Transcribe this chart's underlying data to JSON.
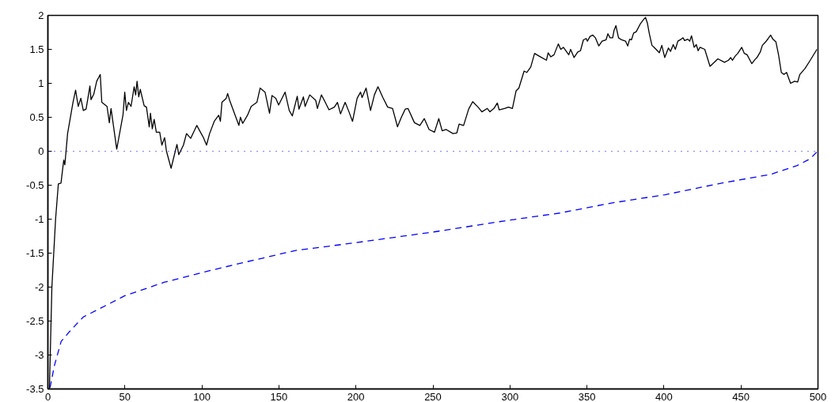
{
  "chart_data": {
    "type": "line",
    "xlim": [
      0,
      500
    ],
    "ylim": [
      -3.5,
      2
    ],
    "xticks": [
      0,
      50,
      100,
      150,
      200,
      250,
      300,
      350,
      400,
      450,
      500
    ],
    "yticks": [
      -3.5,
      -3,
      -2.5,
      -2,
      -1.5,
      -1,
      -0.5,
      0,
      0.5,
      1,
      1.5,
      2
    ],
    "grid": false,
    "ref_lines": [
      {
        "axis": "y",
        "value": 0,
        "color": "#0000ff",
        "line_style": "dotted"
      }
    ],
    "series": [
      {
        "color": "#000000",
        "line_style": "solid",
        "x": [
          1,
          2.6,
          5,
          6.8,
          8.5,
          10.3,
          11,
          12.8,
          16.3,
          18,
          19.7,
          21.4,
          23,
          24.8,
          27.3,
          28,
          29.8,
          31.7,
          34,
          35,
          38.4,
          39.9,
          41,
          44.7,
          48.8,
          49.9,
          51,
          52.3,
          54,
          56,
          57,
          57.9,
          59,
          60,
          62.5,
          64,
          65.8,
          66.6,
          67.8,
          69,
          70.4,
          72.6,
          74,
          75.8,
          77,
          80,
          83.8,
          85,
          88,
          90,
          92.7,
          96.7,
          101,
          103,
          105,
          108,
          110.9,
          112,
          113,
          115.8,
          116.7,
          118,
          124,
          125,
          126.5,
          129.6,
          132,
          135.7,
          137.8,
          141,
          143.9,
          145.5,
          148,
          149.8,
          154,
          156.7,
          158.7,
          161.9,
          163,
          165.9,
          167,
          170,
          173.9,
          175,
          177.6,
          179.9,
          182.5,
          186,
          188,
          190,
          193,
          195.5,
          197.8,
          200.8,
          203,
          204,
          206.6,
          209.5,
          212,
          214.3,
          217.5,
          220.6,
          223.8,
          227,
          229.5,
          232,
          233.8,
          238,
          241.5,
          244.4,
          247.5,
          251,
          253.8,
          256,
          258.6,
          263,
          265.5,
          267,
          269.9,
          273.2,
          275.8,
          279.3,
          281.8,
          285.3,
          287,
          289.6,
          291.8,
          293,
          296.5,
          299,
          301.6,
          304,
          305.8,
          309.2,
          311,
          313.5,
          316,
          319,
          323.7,
          324.8,
          326.5,
          328.6,
          331.4,
          333,
          334.7,
          338.2,
          339.4,
          341.6,
          344,
          345.8,
          347.7,
          349.5,
          350.3,
          352,
          353.8,
          355.5,
          357.7,
          359.8,
          362.4,
          363.6,
          365,
          366.7,
          367.6,
          368.8,
          370.5,
          372.5,
          375.1,
          376.5,
          377.7,
          378.9,
          380.3,
          382,
          384.5,
          386.8,
          388,
          389.2,
          390.5,
          392.2,
          394,
          397,
          398.6,
          400.5,
          402.9,
          404.3,
          406,
          407.4,
          409,
          411.2,
          412.4,
          413.4,
          415.5,
          416.7,
          417.9,
          419.6,
          421,
          422.2,
          423.4,
          426.5,
          429.9,
          435,
          439.3,
          441.9,
          443.3,
          444.5,
          446.2,
          447.9,
          450.5,
          452.2,
          454,
          457,
          459.1,
          460.4,
          462.5,
          463.9,
          466,
          467.7,
          469.3,
          470.7,
          472.7,
          474.4,
          476.2,
          477.9,
          479.6,
          482.2,
          484.8,
          486.8,
          488.2,
          491.6,
          495,
          499.3
        ],
        "values": [
          -3.5,
          -2.0,
          -1.0,
          -0.48,
          -0.47,
          -0.13,
          -0.2,
          0.26,
          0.72,
          0.9,
          0.66,
          0.78,
          0.6,
          0.62,
          0.96,
          0.76,
          0.84,
          1.03,
          1.13,
          0.72,
          0.66,
          0.42,
          0.63,
          0.03,
          0.54,
          0.87,
          0.6,
          0.72,
          0.66,
          0.95,
          0.83,
          1.03,
          0.8,
          0.91,
          0.67,
          0.65,
          0.36,
          0.56,
          0.33,
          0.47,
          0.28,
          0.28,
          0.09,
          0.2,
          0.0,
          -0.25,
          0.1,
          -0.05,
          0.09,
          0.26,
          0.19,
          0.38,
          0.2,
          0.09,
          0.26,
          0.44,
          0.53,
          0.44,
          0.72,
          0.78,
          0.85,
          0.75,
          0.38,
          0.5,
          0.41,
          0.53,
          0.66,
          0.72,
          0.93,
          0.87,
          0.56,
          0.82,
          0.78,
          0.68,
          0.87,
          0.6,
          0.52,
          0.81,
          0.62,
          0.8,
          0.66,
          0.83,
          0.75,
          0.63,
          0.83,
          0.73,
          0.61,
          0.65,
          0.72,
          0.55,
          0.72,
          0.58,
          0.44,
          0.78,
          0.87,
          0.79,
          0.93,
          0.6,
          0.83,
          0.95,
          0.79,
          0.65,
          0.63,
          0.36,
          0.5,
          0.62,
          0.63,
          0.42,
          0.38,
          0.48,
          0.32,
          0.28,
          0.48,
          0.3,
          0.32,
          0.26,
          0.27,
          0.4,
          0.38,
          0.62,
          0.73,
          0.65,
          0.58,
          0.63,
          0.58,
          0.63,
          0.71,
          0.61,
          0.63,
          0.65,
          0.63,
          0.89,
          0.93,
          1.18,
          1.16,
          1.24,
          1.44,
          1.4,
          1.34,
          1.45,
          1.39,
          1.42,
          1.58,
          1.5,
          1.53,
          1.42,
          1.5,
          1.38,
          1.46,
          1.48,
          1.64,
          1.66,
          1.62,
          1.69,
          1.71,
          1.67,
          1.55,
          1.62,
          1.64,
          1.73,
          1.67,
          1.67,
          1.78,
          1.85,
          1.67,
          1.64,
          1.62,
          1.55,
          1.65,
          1.64,
          1.74,
          1.76,
          1.87,
          1.94,
          1.97,
          1.89,
          1.73,
          1.56,
          1.52,
          1.45,
          1.56,
          1.38,
          1.52,
          1.47,
          1.57,
          1.5,
          1.62,
          1.65,
          1.67,
          1.63,
          1.65,
          1.62,
          1.7,
          1.53,
          1.57,
          1.48,
          1.53,
          1.5,
          1.25,
          1.36,
          1.31,
          1.34,
          1.38,
          1.34,
          1.4,
          1.44,
          1.53,
          1.44,
          1.42,
          1.29,
          1.35,
          1.38,
          1.46,
          1.56,
          1.61,
          1.66,
          1.71,
          1.65,
          1.61,
          1.42,
          1.16,
          1.13,
          1.16,
          1.0,
          1.03,
          1.02,
          1.13,
          1.22,
          1.34,
          1.5
        ]
      },
      {
        "color": "#0000ff",
        "line_style": "dashed",
        "x": [
          1.4,
          4.3,
          8.6,
          14.6,
          23,
          34.3,
          49.7,
          75.4,
          101,
          126.8,
          161,
          195.3,
          250,
          298,
          332.3,
          366.5,
          400.8,
          435,
          469.3,
          486.5,
          495,
          499.3
        ],
        "values": [
          -3.48,
          -3.15,
          -2.8,
          -2.64,
          -2.44,
          -2.31,
          -2.13,
          -1.93,
          -1.78,
          -1.64,
          -1.46,
          -1.36,
          -1.19,
          -1.02,
          -0.91,
          -0.76,
          -0.64,
          -0.48,
          -0.34,
          -0.21,
          -0.11,
          -0.01
        ]
      }
    ]
  }
}
